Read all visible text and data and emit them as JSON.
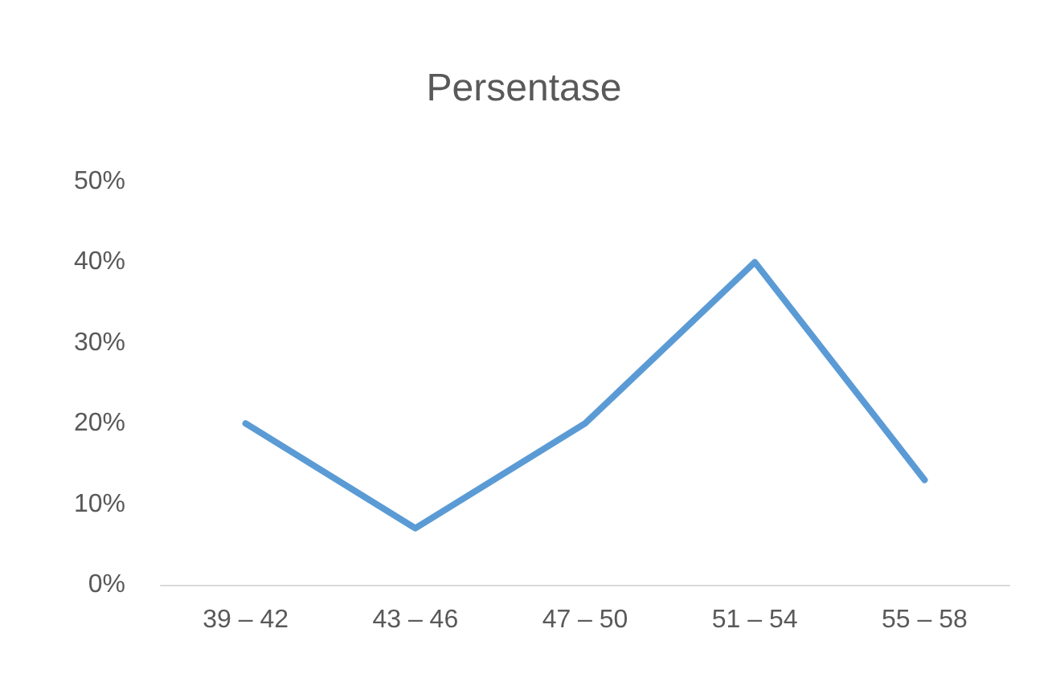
{
  "chart_data": {
    "type": "line",
    "title": "Persentase",
    "categories": [
      "39 – 42",
      "43 – 46",
      "47 – 50",
      "51 – 54",
      "55 – 58"
    ],
    "series": [
      {
        "color": "#5b9bd5",
        "values": [
          20,
          7,
          20,
          40,
          13
        ]
      }
    ],
    "ylim": [
      0,
      50
    ],
    "yticks": [
      {
        "value": 0,
        "label": "0%"
      },
      {
        "value": 10,
        "label": "10%"
      },
      {
        "value": 20,
        "label": "20%"
      },
      {
        "value": 30,
        "label": "30%"
      },
      {
        "value": 40,
        "label": "40%"
      },
      {
        "value": 50,
        "label": "50%"
      }
    ],
    "grid": false,
    "marker": "none",
    "line_style": "solid"
  }
}
